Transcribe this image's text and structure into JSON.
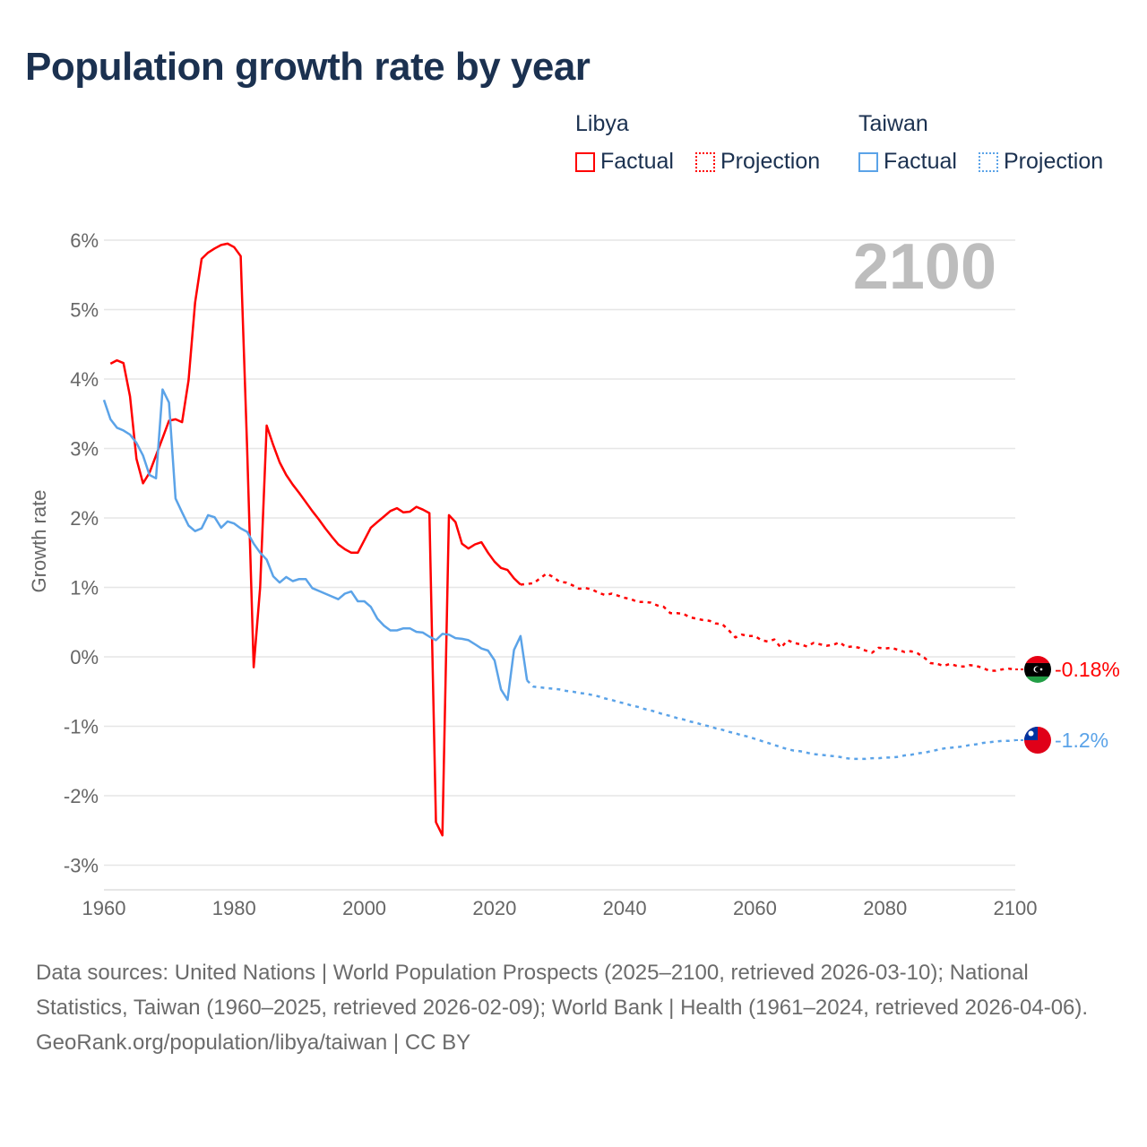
{
  "title": "Population growth rate by year",
  "legend": {
    "groups": [
      {
        "country": "Libya",
        "factual": "Factual",
        "projection": "Projection",
        "color": "#ff0000"
      },
      {
        "country": "Taiwan",
        "factual": "Factual",
        "projection": "Projection",
        "color": "#5ba3e8"
      }
    ]
  },
  "footer": {
    "sources": "Data sources: United Nations | World Population Prospects (2025–2100, retrieved 2026-03-10); National Statistics, Taiwan (1960–2025, retrieved 2026-02-09); World Bank | Health (1961–2024, retrieved 2026-04-06).",
    "link": "GeoRank.org/population/libya/taiwan | CC BY"
  },
  "chart_data": {
    "type": "line",
    "ylabel": "Growth rate",
    "xlabel": "",
    "year_watermark": "2100",
    "xlim": [
      1960,
      2100
    ],
    "ylim": [
      -3,
      6
    ],
    "xticks": [
      "1960",
      "1980",
      "2000",
      "2020",
      "2040",
      "2060",
      "2080",
      "2100"
    ],
    "yticks": [
      "-3%",
      "-2%",
      "-1%",
      "0%",
      "1%",
      "2%",
      "3%",
      "4%",
      "5%",
      "6%"
    ],
    "grid": true,
    "series": [
      {
        "name": "Libya Factual",
        "color": "#ff0000",
        "dashed": false,
        "start": 1961,
        "values": [
          4.22,
          4.27,
          4.23,
          3.75,
          2.85,
          2.5,
          2.65,
          2.9,
          3.15,
          3.4,
          3.42,
          3.38,
          3.98,
          5.1,
          5.73,
          5.82,
          5.88,
          5.93,
          5.95,
          5.9,
          5.77,
          3.0,
          -0.15,
          1.0,
          3.33,
          3.05,
          2.8,
          2.62,
          2.48,
          2.36,
          2.23,
          2.1,
          1.98,
          1.85,
          1.73,
          1.62,
          1.55,
          1.5,
          1.5,
          1.68,
          1.86,
          1.94,
          2.02,
          2.1,
          2.14,
          2.08,
          2.09,
          2.16,
          2.12,
          2.07,
          -2.38,
          -2.57,
          2.04,
          1.94,
          1.63,
          1.56,
          1.62,
          1.65,
          1.5,
          1.37,
          1.28,
          1.25,
          1.13,
          1.04
        ]
      },
      {
        "name": "Libya Projection",
        "color": "#ff0000",
        "dashed": true,
        "start": 2024,
        "values": [
          1.04,
          1.05,
          1.06,
          1.13,
          1.2,
          1.15,
          1.08,
          1.07,
          1.03,
          0.98,
          0.99,
          0.97,
          0.92,
          0.89,
          0.91,
          0.88,
          0.85,
          0.83,
          0.79,
          0.79,
          0.78,
          0.74,
          0.72,
          0.63,
          0.63,
          0.62,
          0.57,
          0.55,
          0.53,
          0.52,
          0.48,
          0.47,
          0.38,
          0.28,
          0.32,
          0.3,
          0.3,
          0.24,
          0.22,
          0.25,
          0.13,
          0.24,
          0.2,
          0.18,
          0.15,
          0.2,
          0.18,
          0.16,
          0.17,
          0.21,
          0.14,
          0.15,
          0.13,
          0.09,
          0.06,
          0.13,
          0.12,
          0.13,
          0.1,
          0.07,
          0.08,
          0.05,
          -0.01,
          -0.09,
          -0.1,
          -0.13,
          -0.1,
          -0.13,
          -0.14,
          -0.12,
          -0.13,
          -0.16,
          -0.2,
          -0.2,
          -0.18,
          -0.17,
          -0.18
        ]
      },
      {
        "name": "Taiwan Factual",
        "color": "#5ba3e8",
        "dashed": false,
        "start": 1960,
        "values": [
          3.7,
          3.42,
          3.3,
          3.26,
          3.2,
          3.08,
          2.9,
          2.62,
          2.57,
          3.85,
          3.66,
          2.28,
          2.08,
          1.89,
          1.81,
          1.85,
          2.04,
          2.01,
          1.86,
          1.95,
          1.92,
          1.85,
          1.8,
          1.63,
          1.5,
          1.4,
          1.16,
          1.07,
          1.15,
          1.09,
          1.12,
          1.12,
          0.99,
          0.95,
          0.91,
          0.87,
          0.83,
          0.91,
          0.94,
          0.8,
          0.8,
          0.72,
          0.55,
          0.45,
          0.38,
          0.38,
          0.41,
          0.41,
          0.36,
          0.35,
          0.29,
          0.24,
          0.33,
          0.32,
          0.27,
          0.26,
          0.24,
          0.18,
          0.12,
          0.09,
          -0.05,
          -0.47,
          -0.62,
          0.1,
          0.3,
          -0.34
        ]
      },
      {
        "name": "Taiwan Projection",
        "color": "#5ba3e8",
        "dashed": true,
        "start": 2025,
        "values": [
          -0.34,
          -0.43,
          -0.44,
          -0.45,
          -0.46,
          -0.47,
          -0.49,
          -0.5,
          -0.52,
          -0.53,
          -0.55,
          -0.57,
          -0.6,
          -0.62,
          -0.65,
          -0.67,
          -0.7,
          -0.72,
          -0.75,
          -0.77,
          -0.8,
          -0.83,
          -0.85,
          -0.88,
          -0.9,
          -0.93,
          -0.95,
          -0.98,
          -1.0,
          -1.03,
          -1.05,
          -1.08,
          -1.1,
          -1.13,
          -1.15,
          -1.18,
          -1.21,
          -1.24,
          -1.27,
          -1.3,
          -1.33,
          -1.35,
          -1.36,
          -1.38,
          -1.4,
          -1.41,
          -1.42,
          -1.43,
          -1.44,
          -1.46,
          -1.47,
          -1.47,
          -1.47,
          -1.46,
          -1.46,
          -1.45,
          -1.45,
          -1.44,
          -1.42,
          -1.41,
          -1.39,
          -1.38,
          -1.36,
          -1.34,
          -1.32,
          -1.31,
          -1.3,
          -1.29,
          -1.27,
          -1.26,
          -1.24,
          -1.23,
          -1.22,
          -1.21,
          -1.21,
          -1.2
        ]
      }
    ],
    "end_labels": [
      {
        "country": "Libya",
        "value": -0.18,
        "label": "-0.18%",
        "color": "#ff0000"
      },
      {
        "country": "Taiwan",
        "value": -1.2,
        "label": "-1.2%",
        "color": "#5ba3e8"
      }
    ]
  }
}
